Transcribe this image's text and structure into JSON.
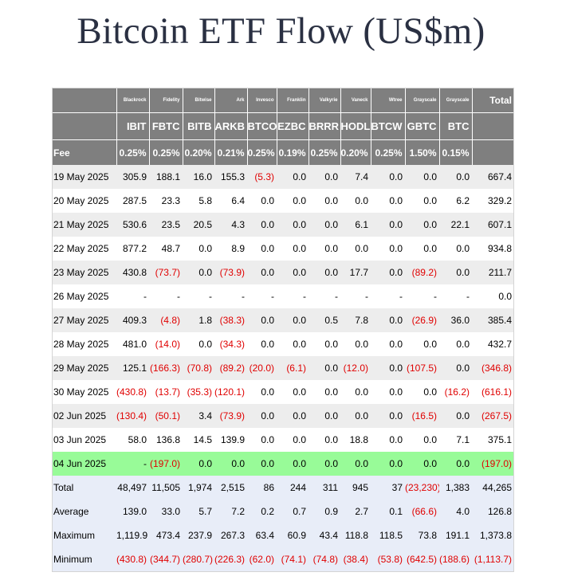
{
  "title": "Bitcoin ETF Flow (US$m)",
  "header": {
    "issuers": [
      "Blackrock",
      "Fidelity",
      "Bitwise",
      "Ark",
      "Invesco",
      "Franklin",
      "Valkyrie",
      "Vaneck",
      "Wtree",
      "Grayscale",
      "Grayscale"
    ],
    "total_label": "Total",
    "tickers": [
      "IBIT",
      "FBTC",
      "BITB",
      "ARKB",
      "BTCO",
      "EZBC",
      "BRRR",
      "HODL",
      "BTCW",
      "GBTC",
      "BTC"
    ],
    "fee_label": "Fee",
    "fees": [
      "0.25%",
      "0.25%",
      "0.20%",
      "0.21%",
      "0.25%",
      "0.19%",
      "0.25%",
      "0.20%",
      "0.25%",
      "1.50%",
      "0.15%"
    ]
  },
  "rows": [
    {
      "date": "19 May 2025",
      "values": [
        "305.9",
        "188.1",
        "16.0",
        "155.3",
        "(5.3)",
        "0.0",
        "0.0",
        "7.4",
        "0.0",
        "0.0",
        "0.0"
      ],
      "total": "667.4"
    },
    {
      "date": "20 May 2025",
      "values": [
        "287.5",
        "23.3",
        "5.8",
        "6.4",
        "0.0",
        "0.0",
        "0.0",
        "0.0",
        "0.0",
        "0.0",
        "6.2"
      ],
      "total": "329.2"
    },
    {
      "date": "21 May 2025",
      "values": [
        "530.6",
        "23.5",
        "20.5",
        "4.3",
        "0.0",
        "0.0",
        "0.0",
        "6.1",
        "0.0",
        "0.0",
        "22.1"
      ],
      "total": "607.1"
    },
    {
      "date": "22 May 2025",
      "values": [
        "877.2",
        "48.7",
        "0.0",
        "8.9",
        "0.0",
        "0.0",
        "0.0",
        "0.0",
        "0.0",
        "0.0",
        "0.0"
      ],
      "total": "934.8"
    },
    {
      "date": "23 May 2025",
      "values": [
        "430.8",
        "(73.7)",
        "0.0",
        "(73.9)",
        "0.0",
        "0.0",
        "0.0",
        "17.7",
        "0.0",
        "(89.2)",
        "0.0"
      ],
      "total": "211.7"
    },
    {
      "date": "26 May 2025",
      "values": [
        "-",
        "-",
        "-",
        "-",
        "-",
        "-",
        "-",
        "-",
        "-",
        "-",
        "-"
      ],
      "total": "0.0"
    },
    {
      "date": "27 May 2025",
      "values": [
        "409.3",
        "(4.8)",
        "1.8",
        "(38.3)",
        "0.0",
        "0.0",
        "0.5",
        "7.8",
        "0.0",
        "(26.9)",
        "36.0"
      ],
      "total": "385.4"
    },
    {
      "date": "28 May 2025",
      "values": [
        "481.0",
        "(14.0)",
        "0.0",
        "(34.3)",
        "0.0",
        "0.0",
        "0.0",
        "0.0",
        "0.0",
        "0.0",
        "0.0"
      ],
      "total": "432.7"
    },
    {
      "date": "29 May 2025",
      "values": [
        "125.1",
        "(166.3)",
        "(70.8)",
        "(89.2)",
        "(20.0)",
        "(6.1)",
        "0.0",
        "(12.0)",
        "0.0",
        "(107.5)",
        "0.0"
      ],
      "total": "(346.8)"
    },
    {
      "date": "30 May 2025",
      "values": [
        "(430.8)",
        "(13.7)",
        "(35.3)",
        "(120.1)",
        "0.0",
        "0.0",
        "0.0",
        "0.0",
        "0.0",
        "0.0",
        "(16.2)"
      ],
      "total": "(616.1)"
    },
    {
      "date": "02 Jun 2025",
      "values": [
        "(130.4)",
        "(50.1)",
        "3.4",
        "(73.9)",
        "0.0",
        "0.0",
        "0.0",
        "0.0",
        "0.0",
        "(16.5)",
        "0.0"
      ],
      "total": "(267.5)"
    },
    {
      "date": "03 Jun 2025",
      "values": [
        "58.0",
        "136.8",
        "14.5",
        "139.9",
        "0.0",
        "0.0",
        "0.0",
        "18.8",
        "0.0",
        "0.0",
        "7.1"
      ],
      "total": "375.1"
    },
    {
      "date": "04 Jun 2025",
      "values": [
        "-",
        "(197.0)",
        "0.0",
        "0.0",
        "0.0",
        "0.0",
        "0.0",
        "0.0",
        "0.0",
        "0.0",
        "0.0"
      ],
      "total": "(197.0)"
    }
  ],
  "stats": [
    {
      "label": "Total",
      "values": [
        "48,497",
        "11,505",
        "1,974",
        "2,515",
        "86",
        "244",
        "311",
        "945",
        "37",
        "(23,230)",
        "1,383"
      ],
      "total": "44,265"
    },
    {
      "label": "Average",
      "values": [
        "139.0",
        "33.0",
        "5.7",
        "7.2",
        "0.2",
        "0.7",
        "0.9",
        "2.7",
        "0.1",
        "(66.6)",
        "4.0"
      ],
      "total": "126.8"
    },
    {
      "label": "Maximum",
      "values": [
        "1,119.9",
        "473.4",
        "237.9",
        "267.3",
        "63.4",
        "60.9",
        "43.4",
        "118.8",
        "118.5",
        "73.8",
        "191.1"
      ],
      "total": "1,373.8"
    },
    {
      "label": "Minimum",
      "values": [
        "(430.8)",
        "(344.7)",
        "(280.7)",
        "(226.3)",
        "(62.0)",
        "(74.1)",
        "(74.8)",
        "(38.4)",
        "(53.8)",
        "(642.5)",
        "(188.6)"
      ],
      "total": "(1,113.7)"
    }
  ],
  "colors": {
    "negative": "#e00000",
    "header_bg": "#7f7f7f",
    "highlight_row": "#98fb98",
    "stats_bg": "#e8edf8",
    "stripe": "#ededed"
  }
}
